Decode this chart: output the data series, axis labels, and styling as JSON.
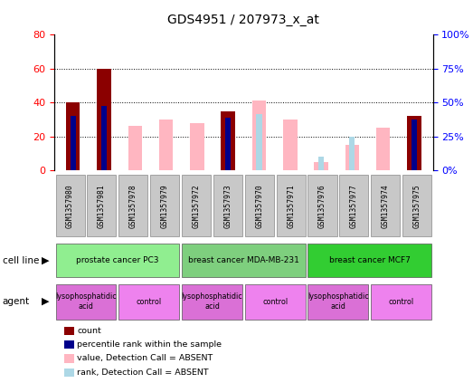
{
  "title": "GDS4951 / 207973_x_at",
  "samples": [
    "GSM1357980",
    "GSM1357981",
    "GSM1357978",
    "GSM1357979",
    "GSM1357972",
    "GSM1357973",
    "GSM1357970",
    "GSM1357971",
    "GSM1357976",
    "GSM1357977",
    "GSM1357974",
    "GSM1357975"
  ],
  "count": [
    40,
    60,
    0,
    0,
    0,
    35,
    0,
    0,
    0,
    0,
    0,
    32
  ],
  "percentile_rank": [
    32,
    38,
    0,
    0,
    0,
    31,
    0,
    0,
    0,
    0,
    0,
    30
  ],
  "absent_value": [
    0,
    0,
    26,
    30,
    28,
    0,
    41,
    30,
    5,
    15,
    25,
    0
  ],
  "absent_rank": [
    0,
    0,
    0,
    0,
    0,
    0,
    33,
    0,
    8,
    20,
    0,
    0
  ],
  "cell_lines": [
    {
      "label": "prostate cancer PC3",
      "start": 0,
      "end": 4,
      "color": "#90ee90"
    },
    {
      "label": "breast cancer MDA-MB-231",
      "start": 4,
      "end": 8,
      "color": "#7ecf7e"
    },
    {
      "label": "breast cancer MCF7",
      "start": 8,
      "end": 12,
      "color": "#32cd32"
    }
  ],
  "agents": [
    {
      "label": "lysophosphatidic\nacid",
      "start": 0,
      "end": 2,
      "color": "#da70d6"
    },
    {
      "label": "control",
      "start": 2,
      "end": 4,
      "color": "#ee82ee"
    },
    {
      "label": "lysophosphatidic\nacid",
      "start": 4,
      "end": 6,
      "color": "#da70d6"
    },
    {
      "label": "control",
      "start": 6,
      "end": 8,
      "color": "#ee82ee"
    },
    {
      "label": "lysophosphatidic\nacid",
      "start": 8,
      "end": 10,
      "color": "#da70d6"
    },
    {
      "label": "control",
      "start": 10,
      "end": 12,
      "color": "#ee82ee"
    }
  ],
  "left_ylim": [
    0,
    80
  ],
  "left_yticks": [
    0,
    20,
    40,
    60,
    80
  ],
  "right_yticks": [
    0.0,
    0.25,
    0.5,
    0.75,
    1.0
  ],
  "right_yticklabels": [
    "0%",
    "25%",
    "50%",
    "75%",
    "100%"
  ],
  "count_color": "#8b0000",
  "rank_color": "#00008b",
  "absent_value_color": "#ffb6c1",
  "absent_rank_color": "#add8e6",
  "legend_items": [
    {
      "color": "#8b0000",
      "label": "count"
    },
    {
      "color": "#00008b",
      "label": "percentile rank within the sample"
    },
    {
      "color": "#ffb6c1",
      "label": "value, Detection Call = ABSENT"
    },
    {
      "color": "#add8e6",
      "label": "rank, Detection Call = ABSENT"
    }
  ]
}
